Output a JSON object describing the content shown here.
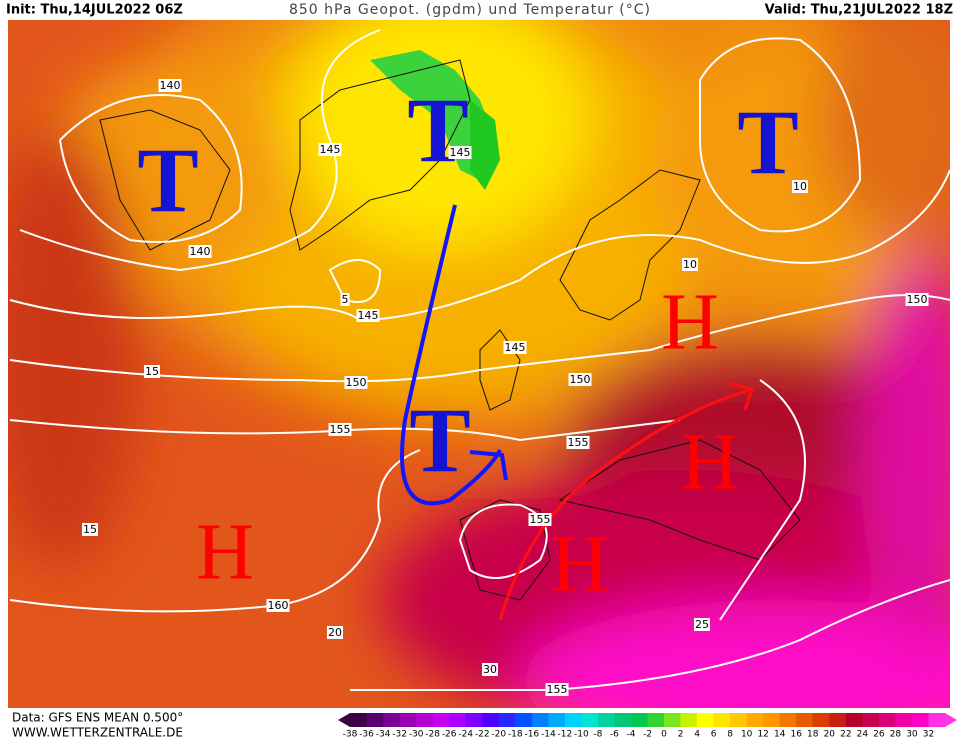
{
  "header": {
    "init": "Init: Thu,14JUL2022 06Z",
    "title": "850 hPa Geopot. (gpdm) und Temperatur (°C)",
    "valid": "Valid: Thu,21JUL2022 18Z"
  },
  "systems": [
    {
      "label": "T"
    },
    {
      "label": "T"
    },
    {
      "label": "T"
    },
    {
      "label": "T"
    },
    {
      "label": "H"
    },
    {
      "label": "H"
    },
    {
      "label": "H"
    },
    {
      "label": "H"
    }
  ],
  "contour_labels": [
    "140",
    "140",
    "145",
    "145",
    "145",
    "145",
    "150",
    "150",
    "150",
    "155",
    "155",
    "160",
    "155",
    "155",
    "10",
    "10",
    "15",
    "15",
    "20",
    "25",
    "30",
    "5"
  ],
  "colorbar": {
    "labels": [
      -38,
      -36,
      -34,
      -32,
      -30,
      -28,
      -26,
      -24,
      -22,
      -20,
      -18,
      -16,
      -14,
      -12,
      -10,
      -8,
      -6,
      -4,
      -2,
      0,
      2,
      4,
      6,
      8,
      10,
      12,
      14,
      16,
      18,
      20,
      22,
      24,
      26,
      28,
      30,
      32
    ],
    "colors": [
      "#3c0046",
      "#5a006e",
      "#7a0096",
      "#9a00b4",
      "#b400d2",
      "#c800f0",
      "#aa00ff",
      "#8000ff",
      "#5000ff",
      "#2828ff",
      "#0050ff",
      "#0080ff",
      "#00aaff",
      "#00d2ff",
      "#00e6d2",
      "#00d2a0",
      "#00c878",
      "#00c850",
      "#32d232",
      "#78e61e",
      "#c8f000",
      "#ffff00",
      "#ffe600",
      "#ffc800",
      "#ffaa00",
      "#ff9600",
      "#f07800",
      "#e65a00",
      "#dc3c00",
      "#c81e14",
      "#b40028",
      "#c80050",
      "#dc0078",
      "#f000a0",
      "#ff00c8",
      "#ff32e6"
    ]
  },
  "footer": {
    "source": "Data: GFS ENS MEAN 0.500°",
    "site": "WWW.WETTERZENTRALE.DE"
  }
}
